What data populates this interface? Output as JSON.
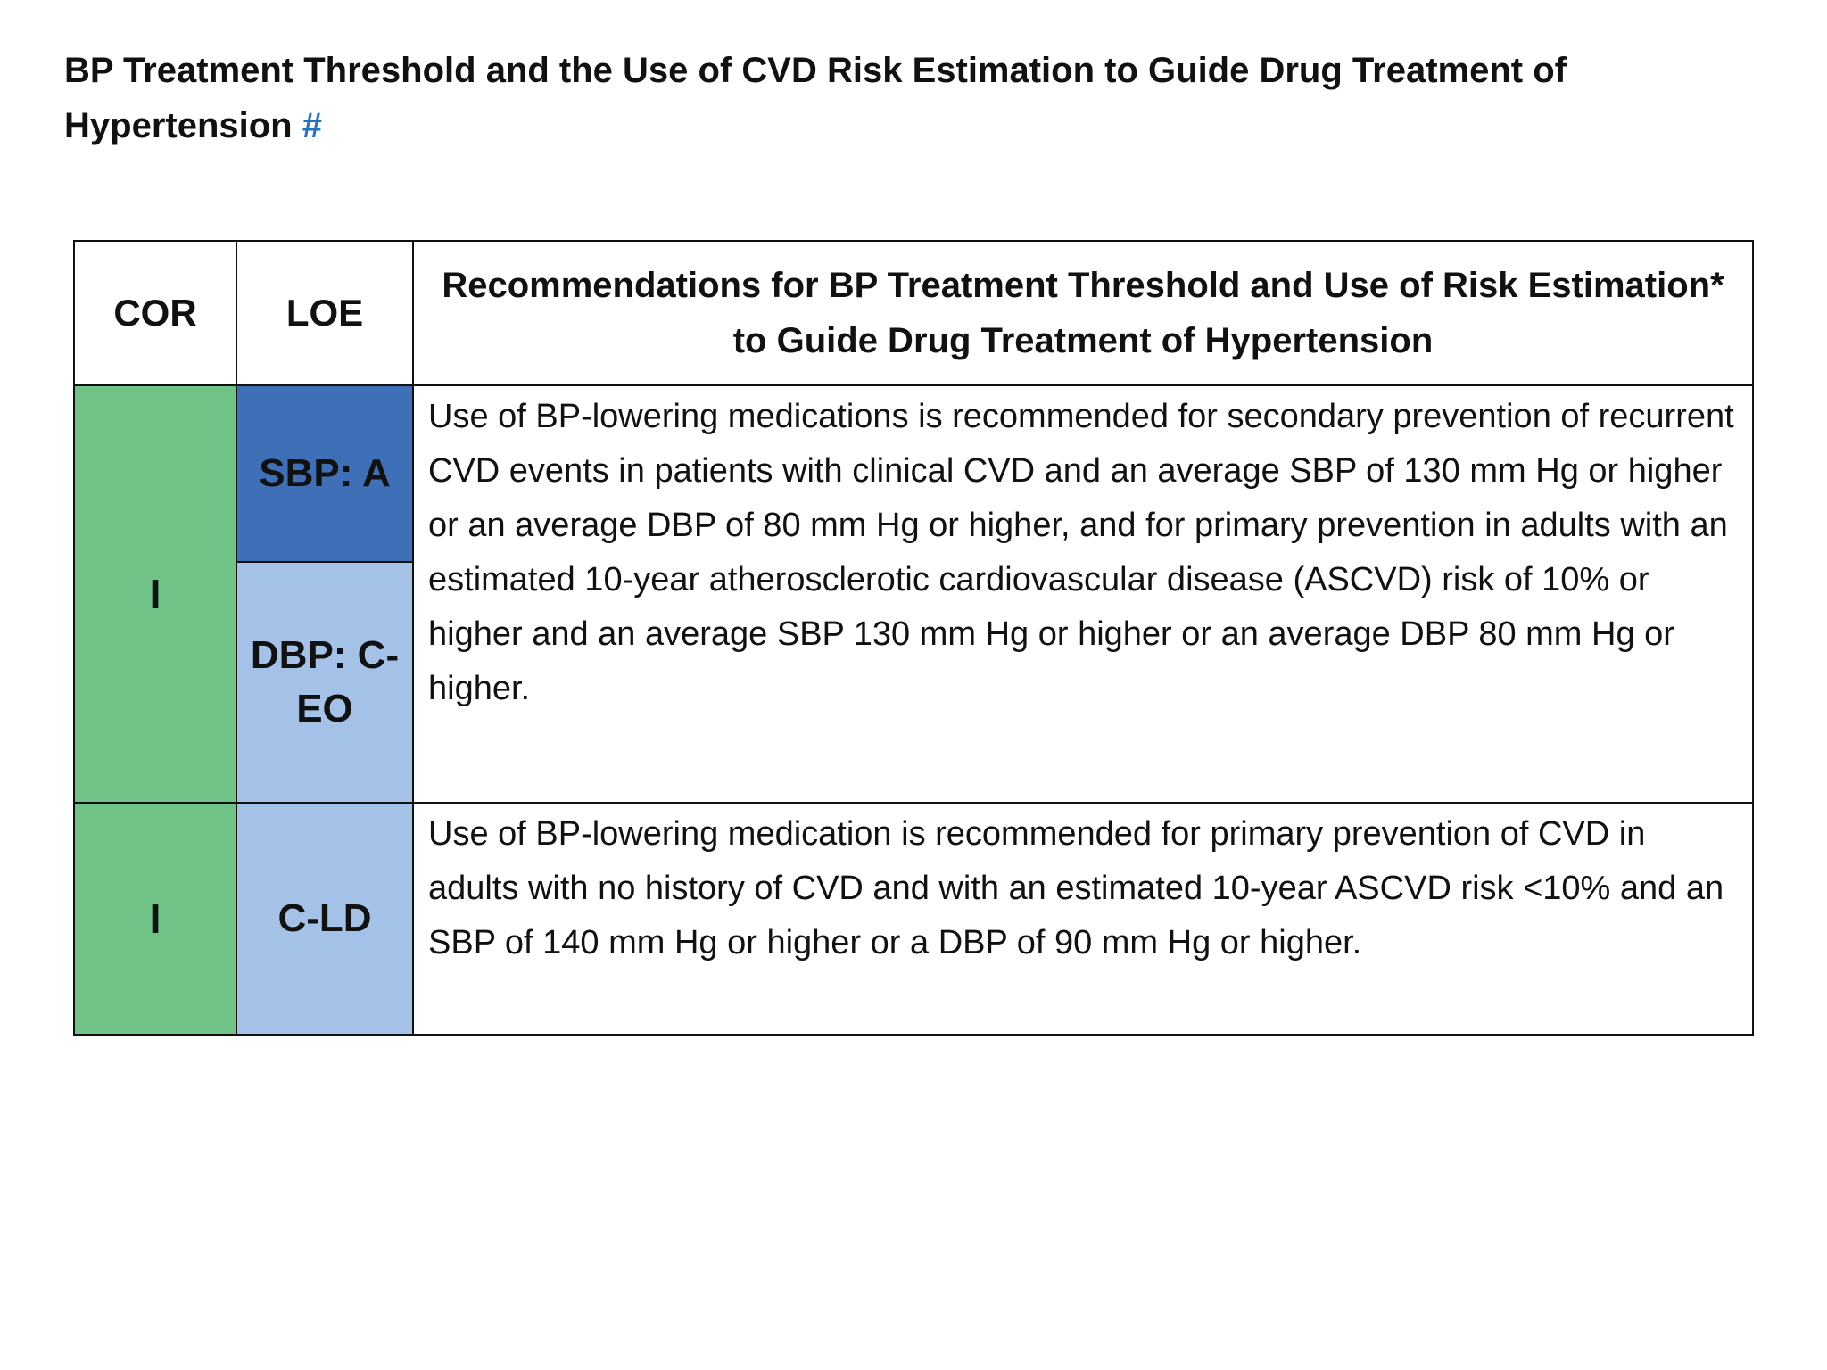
{
  "header": {
    "title": "BP Treatment Threshold and the Use of CVD Risk Estimation to Guide Drug Treatment of Hypertension",
    "marker": "#"
  },
  "table": {
    "columns": [
      "COR",
      "LOE",
      "Recommendations for BP Treatment Threshold and Use of Risk Estimation* to Guide Drug Treatment of Hypertension"
    ],
    "rows": [
      {
        "cor": "I",
        "loe": [
          "SBP: A",
          "DBP: C-EO"
        ],
        "text": "Use of BP-lowering medications is recommended for secondary prevention of recurrent CVD events  in patients with clinical CVD  and an average SBP of 130 mm Hg or higher or an average DBP of 80 mm Hg or higher, and for primary prevention in adults with an estimated 10-year atherosclerotic cardiovascular disease (ASCVD) risk of 10% or higher and an average SBP 130 mm Hg or higher or an average DBP 80 mm Hg or higher."
      },
      {
        "cor": "I",
        "loe": [
          "C-LD"
        ],
        "text": "Use of BP-lowering medication is recommended for primary prevention of CVD in adults with no history of CVD and with an estimated 10-year ASCVD risk <10% and an SBP of 140 mm Hg or higher or a DBP of 90 mm Hg or higher."
      }
    ]
  }
}
